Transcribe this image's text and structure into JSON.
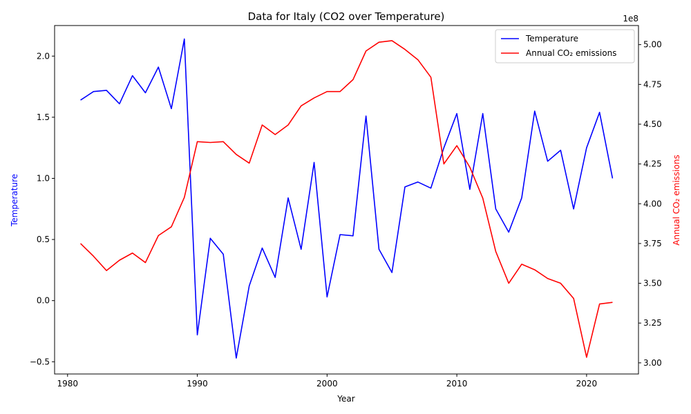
{
  "chart_data": {
    "type": "line",
    "title": "Data for Italy (CO2 over Temperature)",
    "xlabel": "Year",
    "ylabel_left": "Temperature",
    "ylabel_right": "Annual CO₂ emissions",
    "right_axis_multiplier": "1e8",
    "xlim": [
      1979,
      2024
    ],
    "ylim_left": [
      -0.6,
      2.25
    ],
    "ylim_right": [
      293000000.0,
      512000000.0
    ],
    "x_ticks": [
      1980,
      1990,
      2000,
      2010,
      2020
    ],
    "y_ticks_left": [
      -0.5,
      0.0,
      0.5,
      1.0,
      1.5,
      2.0
    ],
    "y_tick_labels_left": [
      "−0.5",
      "0.0",
      "0.5",
      "1.0",
      "1.5",
      "2.0"
    ],
    "y_ticks_right": [
      3.0,
      3.25,
      3.5,
      3.75,
      4.0,
      4.25,
      4.5,
      4.75,
      5.0
    ],
    "y_tick_labels_right": [
      "3.00",
      "3.25",
      "3.50",
      "3.75",
      "4.00",
      "4.25",
      "4.50",
      "4.75",
      "5.00"
    ],
    "legend_position": "top-right",
    "grid": false,
    "x": [
      1981,
      1982,
      1983,
      1984,
      1985,
      1986,
      1987,
      1988,
      1989,
      1990,
      1991,
      1992,
      1993,
      1994,
      1995,
      1996,
      1997,
      1998,
      1999,
      2000,
      2001,
      2002,
      2003,
      2004,
      2005,
      2006,
      2007,
      2008,
      2009,
      2010,
      2011,
      2012,
      2013,
      2014,
      2015,
      2016,
      2017,
      2018,
      2019,
      2020,
      2021,
      2022
    ],
    "series": [
      {
        "name": "Temperature",
        "axis": "left",
        "color": "#0000ff",
        "values": [
          1.64,
          1.71,
          1.72,
          1.61,
          1.84,
          1.7,
          1.91,
          1.57,
          2.14,
          -0.28,
          0.51,
          0.38,
          -0.47,
          0.12,
          0.43,
          0.19,
          0.84,
          0.42,
          1.13,
          0.03,
          0.54,
          0.53,
          1.51,
          0.42,
          0.23,
          0.93,
          0.97,
          0.92,
          1.25,
          1.53,
          0.91,
          1.53,
          0.75,
          0.56,
          0.84,
          1.55,
          1.14,
          1.23,
          0.75,
          1.25,
          1.54,
          1.0
        ]
      },
      {
        "name": "Annual CO₂ emissions",
        "axis": "right",
        "color": "#ff0000",
        "values": [
          375000000.0,
          367000000.0,
          358000000.0,
          364500000.0,
          369000000.0,
          363000000.0,
          380000000.0,
          385500000.0,
          404000000.0,
          439000000.0,
          438500000.0,
          439000000.0,
          431000000.0,
          425500000.0,
          449500000.0,
          443500000.0,
          449500000.0,
          461500000.0,
          466500000.0,
          470500000.0,
          470500000.0,
          478000000.0,
          496000000.0,
          501500000.0,
          502500000.0,
          497000000.0,
          490500000.0,
          479500000.0,
          425000000.0,
          436500000.0,
          423000000.0,
          403500000.0,
          370000000.0,
          350000000.0,
          362000000.0,
          358500000.0,
          353000000.0,
          350000000.0,
          340500000.0,
          303500000.0,
          337000000.0,
          338000000.0
        ]
      }
    ]
  }
}
